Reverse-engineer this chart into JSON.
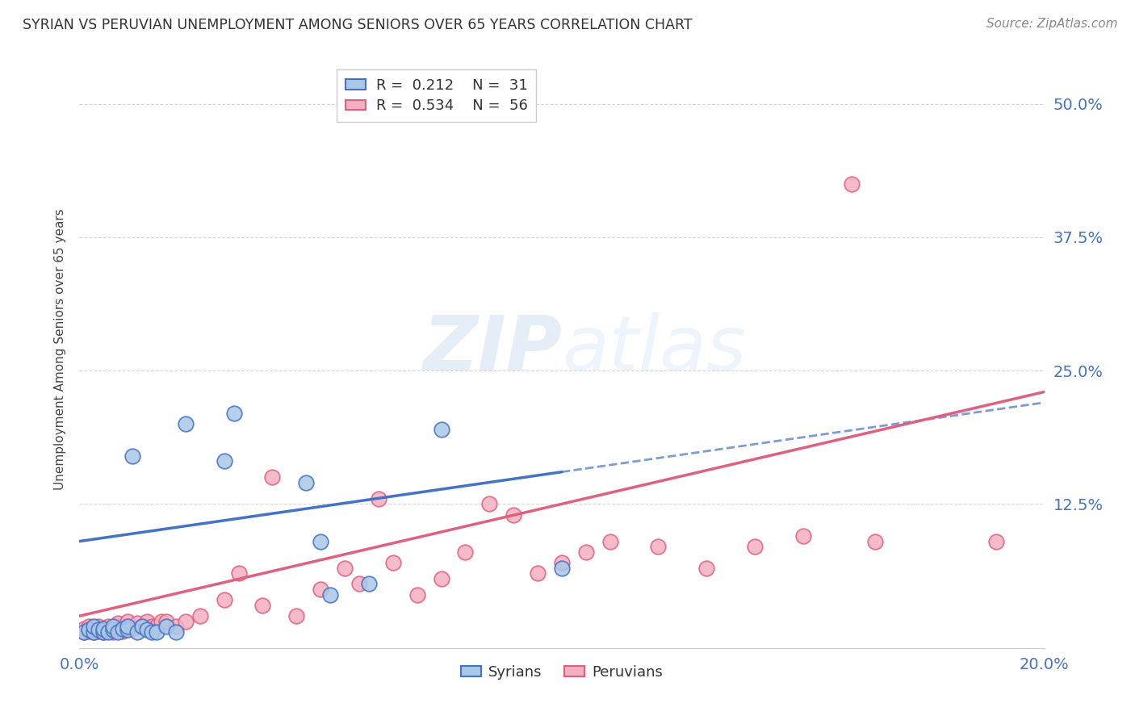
{
  "title": "SYRIAN VS PERUVIAN UNEMPLOYMENT AMONG SENIORS OVER 65 YEARS CORRELATION CHART",
  "source": "Source: ZipAtlas.com",
  "ylabel": "Unemployment Among Seniors over 65 years",
  "xlim": [
    0.0,
    0.2
  ],
  "ylim": [
    -0.01,
    0.55
  ],
  "ytick_labels": [
    "12.5%",
    "25.0%",
    "37.5%",
    "50.0%"
  ],
  "ytick_values": [
    0.125,
    0.25,
    0.375,
    0.5
  ],
  "grid_color": "#cccccc",
  "syrian_color": "#aac8e8",
  "peruvian_color": "#f4b0c0",
  "syrian_line_color": "#4472c4",
  "peruvian_line_color": "#e06080",
  "syrian_R": 0.212,
  "syrian_N": 31,
  "peruvian_R": 0.534,
  "peruvian_N": 56,
  "legend_label_syrian": "Syrians",
  "legend_label_peruvian": "Peruvians",
  "syrian_x": [
    0.001,
    0.002,
    0.003,
    0.003,
    0.004,
    0.005,
    0.005,
    0.006,
    0.007,
    0.007,
    0.008,
    0.009,
    0.01,
    0.01,
    0.011,
    0.012,
    0.013,
    0.014,
    0.015,
    0.016,
    0.018,
    0.02,
    0.022,
    0.03,
    0.032,
    0.047,
    0.05,
    0.052,
    0.06,
    0.075,
    0.1
  ],
  "syrian_y": [
    0.005,
    0.007,
    0.005,
    0.01,
    0.007,
    0.005,
    0.008,
    0.005,
    0.007,
    0.01,
    0.005,
    0.008,
    0.007,
    0.01,
    0.17,
    0.005,
    0.01,
    0.007,
    0.005,
    0.005,
    0.01,
    0.005,
    0.2,
    0.165,
    0.21,
    0.145,
    0.09,
    0.04,
    0.05,
    0.195,
    0.065
  ],
  "peruvian_x": [
    0.001,
    0.001,
    0.002,
    0.002,
    0.003,
    0.003,
    0.004,
    0.004,
    0.005,
    0.005,
    0.006,
    0.006,
    0.007,
    0.007,
    0.008,
    0.008,
    0.009,
    0.01,
    0.01,
    0.011,
    0.012,
    0.013,
    0.014,
    0.015,
    0.016,
    0.017,
    0.018,
    0.02,
    0.022,
    0.025,
    0.03,
    0.033,
    0.038,
    0.04,
    0.045,
    0.05,
    0.055,
    0.058,
    0.062,
    0.065,
    0.07,
    0.075,
    0.08,
    0.085,
    0.09,
    0.095,
    0.1,
    0.105,
    0.11,
    0.12,
    0.13,
    0.14,
    0.15,
    0.16,
    0.165,
    0.19
  ],
  "peruvian_y": [
    0.005,
    0.008,
    0.006,
    0.01,
    0.005,
    0.008,
    0.006,
    0.01,
    0.005,
    0.008,
    0.006,
    0.01,
    0.005,
    0.008,
    0.01,
    0.013,
    0.006,
    0.01,
    0.015,
    0.008,
    0.013,
    0.01,
    0.015,
    0.01,
    0.01,
    0.015,
    0.015,
    0.01,
    0.015,
    0.02,
    0.035,
    0.06,
    0.03,
    0.15,
    0.02,
    0.045,
    0.065,
    0.05,
    0.13,
    0.07,
    0.04,
    0.055,
    0.08,
    0.125,
    0.115,
    0.06,
    0.07,
    0.08,
    0.09,
    0.085,
    0.065,
    0.085,
    0.095,
    0.425,
    0.09,
    0.09
  ],
  "watermark_zip": "ZIP",
  "watermark_atlas": "atlas",
  "background_color": "#ffffff",
  "title_color": "#333333",
  "source_color": "#888888",
  "tick_color": "#4472c4"
}
